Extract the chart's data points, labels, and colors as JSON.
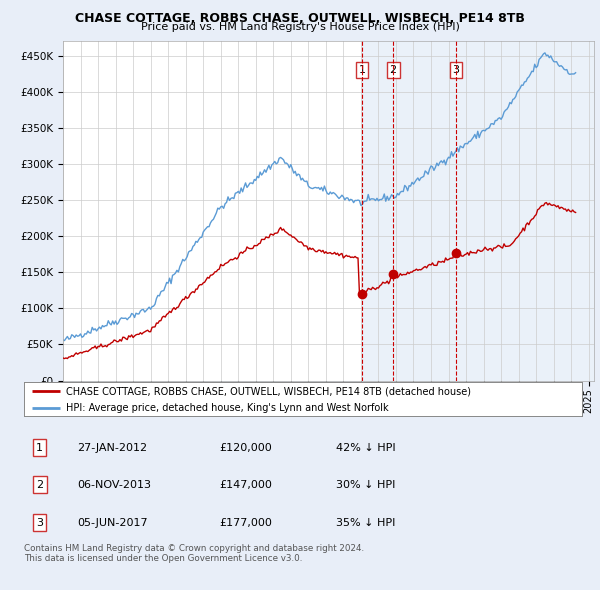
{
  "title": "CHASE COTTAGE, ROBBS CHASE, OUTWELL, WISBECH, PE14 8TB",
  "subtitle": "Price paid vs. HM Land Registry's House Price Index (HPI)",
  "background_color": "#e8eef8",
  "plot_bg": "#ffffff",
  "ylabel_ticks": [
    "£0",
    "£50K",
    "£100K",
    "£150K",
    "£200K",
    "£250K",
    "£300K",
    "£350K",
    "£400K",
    "£450K"
  ],
  "ytick_values": [
    0,
    50000,
    100000,
    150000,
    200000,
    250000,
    300000,
    350000,
    400000,
    450000
  ],
  "ylim": [
    0,
    470000
  ],
  "xlim_start": 1995.0,
  "xlim_end": 2025.3,
  "hpi_color": "#5b9bd5",
  "price_color": "#c00000",
  "vline_color": "#cc0000",
  "shade_color": "#dce9f5",
  "purchases": [
    {
      "date_num": 2012.07,
      "price": 120000,
      "label": "1"
    },
    {
      "date_num": 2013.84,
      "price": 147000,
      "label": "2"
    },
    {
      "date_num": 2017.42,
      "price": 177000,
      "label": "3"
    }
  ],
  "legend_house_label": "CHASE COTTAGE, ROBBS CHASE, OUTWELL, WISBECH, PE14 8TB (detached house)",
  "legend_hpi_label": "HPI: Average price, detached house, King's Lynn and West Norfolk",
  "table_rows": [
    {
      "num": "1",
      "date": "27-JAN-2012",
      "price": "£120,000",
      "pct": "42% ↓ HPI"
    },
    {
      "num": "2",
      "date": "06-NOV-2013",
      "price": "£147,000",
      "pct": "30% ↓ HPI"
    },
    {
      "num": "3",
      "date": "05-JUN-2017",
      "price": "£177,000",
      "pct": "35% ↓ HPI"
    }
  ],
  "footer": "Contains HM Land Registry data © Crown copyright and database right 2024.\nThis data is licensed under the Open Government Licence v3.0."
}
